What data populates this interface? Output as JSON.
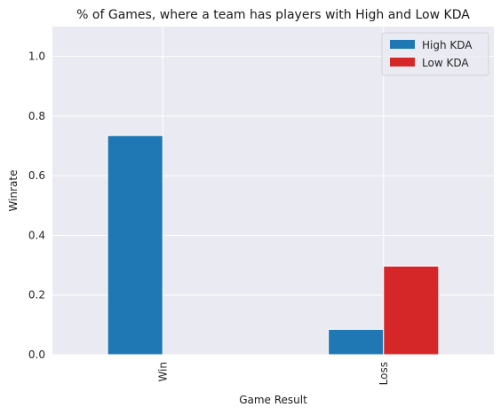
{
  "chart_data": {
    "type": "bar",
    "title": "% of Games, where a team has players with High and Low KDA",
    "xlabel": "Game Result",
    "ylabel": "Winrate",
    "categories": [
      "Win",
      "Loss"
    ],
    "series": [
      {
        "name": "High KDA",
        "color": "#1f77b4",
        "values": [
          0.735,
          0.085
        ]
      },
      {
        "name": "Low KDA",
        "color": "#d62728",
        "values": [
          0.0,
          0.297
        ]
      }
    ],
    "ylim": [
      0,
      1.1
    ],
    "yticks": [
      "0.0",
      "0.2",
      "0.4",
      "0.6",
      "0.8",
      "1.0"
    ],
    "grid": true,
    "legend_position": "top-right",
    "background_color": "#eaeaf2"
  }
}
